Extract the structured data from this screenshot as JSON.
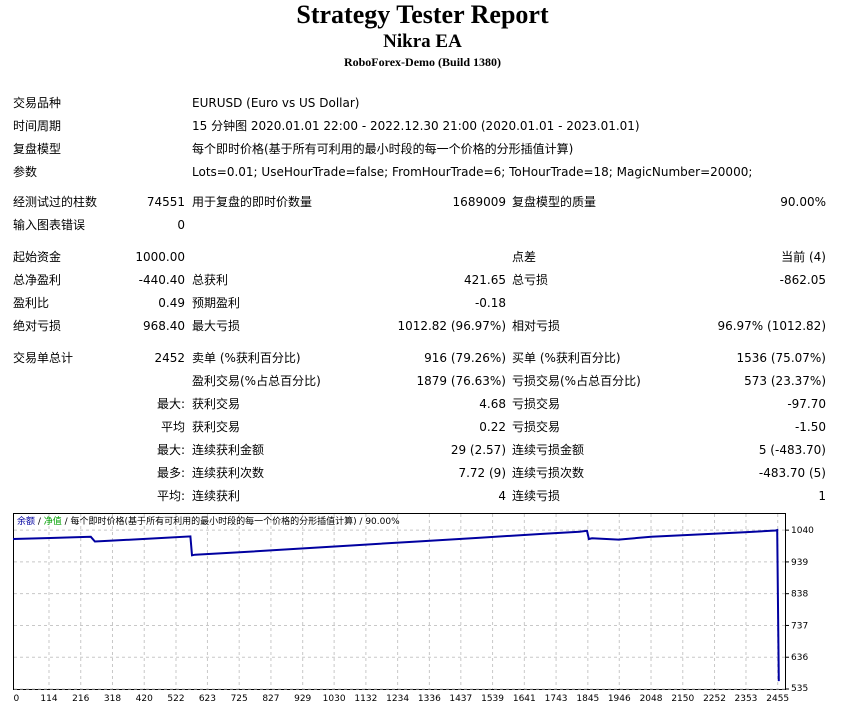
{
  "header": {
    "title": "Strategy Tester Report",
    "subtitle": "Nikra EA",
    "server": "RoboForex-Demo (Build 1380)"
  },
  "info": {
    "symbol_label": "交易品种",
    "symbol_value": "EURUSD (Euro vs US Dollar)",
    "period_label": "时间周期",
    "period_value": "15 分钟图 2020.01.01 22:00 - 2022.12.30 21:00 (2020.01.01 - 2023.01.01)",
    "model_label": "复盘模型",
    "model_value": "每个即时价格(基于所有可利用的最小时段的每一个价格的分形插值计算)",
    "params_label": "参数",
    "params_value": "Lots=0.01; UseHourTrade=false; FromHourTrade=6; ToHourTrade=18; MagicNumber=20000;"
  },
  "stats": {
    "bars_label": "经测试过的柱数",
    "bars_value": "74551",
    "ticks_label": "用于复盘的即时价数量",
    "ticks_value": "1689009",
    "quality_label": "复盘模型的质量",
    "quality_value": "90.00%",
    "errors_label": "输入图表错误",
    "errors_value": "0",
    "deposit_label": "起始资金",
    "deposit_value": "1000.00",
    "spread_label": "点差",
    "spread_value": "当前 (4)",
    "net_label": "总净盈利",
    "net_value": "-440.40",
    "gross_profit_label": "总获利",
    "gross_profit_value": "421.65",
    "gross_loss_label": "总亏损",
    "gross_loss_value": "-862.05",
    "pf_label": "盈利比",
    "pf_value": "0.49",
    "expected_label": "预期盈利",
    "expected_value": "-0.18",
    "abs_dd_label": "绝对亏损",
    "abs_dd_value": "968.40",
    "max_dd_label": "最大亏损",
    "max_dd_value": "1012.82 (96.97%)",
    "rel_dd_label": "相对亏损",
    "rel_dd_value": "96.97% (1012.82)",
    "total_trades_label": "交易单总计",
    "total_trades_value": "2452",
    "short_label": "卖单 (%获利百分比)",
    "short_value": "916 (79.26%)",
    "long_label": "买单 (%获利百分比)",
    "long_value": "1536 (75.07%)",
    "profit_trades_label": "盈利交易(%占总百分比)",
    "profit_trades_value": "1879 (76.63%)",
    "loss_trades_label": "亏损交易(%占总百分比)",
    "loss_trades_value": "573 (23.37%)",
    "largest_prefix": "最大:",
    "largest_profit_label": "获利交易",
    "largest_profit_value": "4.68",
    "largest_loss_label": "亏损交易",
    "largest_loss_value": "-97.70",
    "average_prefix": "平均",
    "average_profit_label": "获利交易",
    "average_profit_value": "0.22",
    "average_loss_label": "亏损交易",
    "average_loss_value": "-1.50",
    "max_consec_prefix": "最大:",
    "max_consec_win_label": "连续获利金额",
    "max_consec_win_value": "29 (2.57)",
    "max_consec_loss_label": "连续亏损金额",
    "max_consec_loss_value": "5 (-483.70)",
    "most_consec_prefix": "最多:",
    "most_consec_win_label": "连续获利次数",
    "most_consec_win_value": "7.72 (9)",
    "most_consec_loss_label": "连续亏损次数",
    "most_consec_loss_value": "-483.70 (5)",
    "avg_consec_prefix": "平均:",
    "avg_consec_win_label": "连续获利",
    "avg_consec_win_value": "4",
    "avg_consec_loss_label": "连续亏损",
    "avg_consec_loss_value": "1"
  },
  "chart_data": {
    "type": "line",
    "legend": {
      "balance": "余额",
      "sep": " / ",
      "equity": "净值",
      "rest": " / 每个即时价格(基于所有可利用的最小时段的每一个价格的分形插值计算) / 90.00%"
    },
    "colors": {
      "balance": "#0000a0",
      "equity": "#00a000",
      "grid": "#c8c8c8"
    },
    "x_ticks": [
      0,
      114,
      216,
      318,
      420,
      522,
      623,
      725,
      827,
      929,
      1030,
      1132,
      1234,
      1336,
      1437,
      1539,
      1641,
      1743,
      1845,
      1946,
      2048,
      2150,
      2252,
      2353,
      2455
    ],
    "y_ticks": [
      1040,
      939,
      838,
      737,
      636,
      535
    ],
    "xlim": [
      0,
      2480
    ],
    "ylim": [
      535,
      1050
    ],
    "series": [
      {
        "x": [
          0,
          120,
          250,
          263,
          310,
          440,
          570,
          575,
          585,
          700,
          900,
          1100,
          1300,
          1500,
          1700,
          1820,
          1844,
          1850,
          1860,
          1945,
          2050,
          2200,
          2350,
          2450,
          2455,
          2460
        ],
        "y": [
          1012,
          1015,
          1019,
          1004,
          1006,
          1013,
          1020,
          960,
          962,
          968,
          980,
          992,
          1004,
          1016,
          1028,
          1035,
          1038,
          1012,
          1014,
          1010,
          1019,
          1026,
          1033,
          1039,
          1040,
          560
        ]
      }
    ]
  }
}
